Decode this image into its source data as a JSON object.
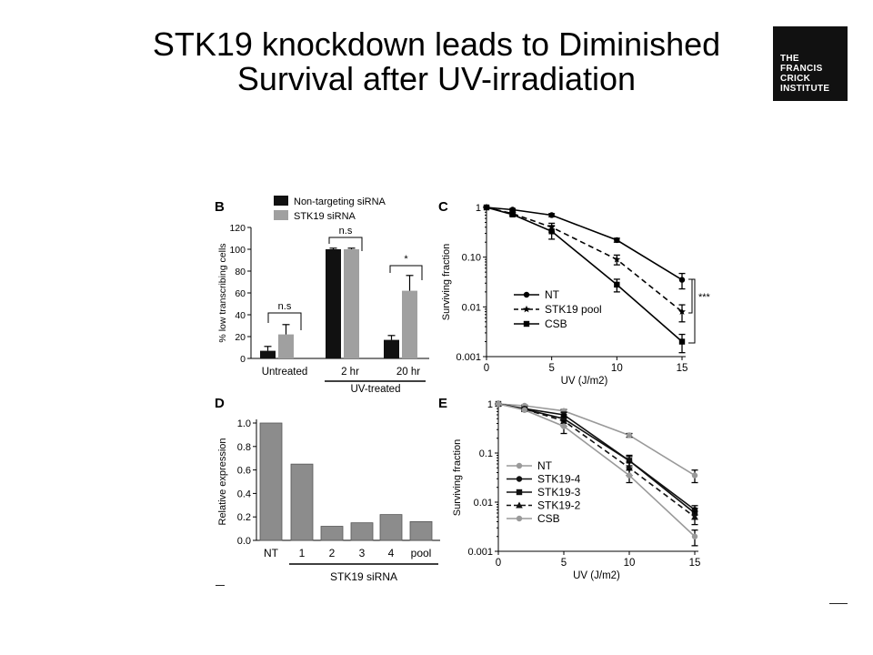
{
  "slide": {
    "title_line1": "STK19 knockdown leads to Diminished",
    "title_line2": "Survival after UV-irradiation",
    "logo_lines": [
      "THE",
      "FRANCIS",
      "CRICK",
      "INSTITUTE"
    ]
  },
  "colors": {
    "black": "#111111",
    "gray": "#a0a0a0",
    "panel_d_bar": "#8c8c8c",
    "gray_series": "#9a9a9a"
  },
  "chart_data": [
    {
      "panel": "B",
      "type": "bar",
      "ylabel": "% low transcribing cells",
      "ylim": [
        0,
        120
      ],
      "yticks": [
        "0",
        "20",
        "40",
        "60",
        "80",
        "100",
        "120"
      ],
      "categories": [
        "Untreated",
        "2 hr",
        "20 hr"
      ],
      "group_label": "UV-treated",
      "series": [
        {
          "name": "Non-targeting siRNA",
          "color": "#111111",
          "values": [
            7,
            100,
            17
          ],
          "errors": [
            4,
            1,
            4
          ]
        },
        {
          "name": "STK19 siRNA",
          "color": "#a0a0a0",
          "values": [
            22,
            100,
            62
          ],
          "errors": [
            9,
            1,
            14
          ]
        }
      ],
      "annotations": [
        "n.s",
        "n.s",
        "*"
      ]
    },
    {
      "panel": "C",
      "type": "line",
      "xlabel": "UV (J/m2)",
      "ylabel": "Surviving fraction",
      "yscale": "log",
      "xlim": [
        0,
        15
      ],
      "ylim": [
        0.001,
        1
      ],
      "xticks": [
        "0",
        "5",
        "10",
        "15"
      ],
      "yticks": [
        "0.001",
        "0.01",
        "0.10",
        "1"
      ],
      "x": [
        0,
        2,
        5,
        10,
        15
      ],
      "series": [
        {
          "name": "NT",
          "style": "solid",
          "marker": "circle",
          "values": [
            1,
            0.9,
            0.7,
            0.22,
            0.035
          ],
          "errors": [
            0,
            0.05,
            0.05,
            0.02,
            0.012
          ]
        },
        {
          "name": "STK19 pool",
          "style": "dashed",
          "marker": "star",
          "values": [
            1,
            0.75,
            0.4,
            0.09,
            0.008
          ],
          "errors": [
            0,
            0.05,
            0.08,
            0.02,
            0.003
          ]
        },
        {
          "name": "CSB",
          "style": "solid",
          "marker": "square",
          "values": [
            1,
            0.72,
            0.33,
            0.028,
            0.002
          ],
          "errors": [
            0,
            0.05,
            0.1,
            0.008,
            0.0008
          ]
        }
      ],
      "annotations": [
        "***"
      ]
    },
    {
      "panel": "D",
      "type": "bar",
      "ylabel": "Relative expression",
      "ylim": [
        0,
        1.0
      ],
      "yticks": [
        "0.0",
        "0.2",
        "0.4",
        "0.6",
        "0.8",
        "1.0"
      ],
      "categories": [
        "NT",
        "1",
        "2",
        "3",
        "4",
        "pool"
      ],
      "values": [
        1.0,
        0.65,
        0.12,
        0.15,
        0.22,
        0.16
      ],
      "group_label": "STK19 siRNA"
    },
    {
      "panel": "E",
      "type": "line",
      "xlabel": "UV (J/m2)",
      "ylabel": "Surviving fraction",
      "yscale": "log",
      "xlim": [
        0,
        15
      ],
      "ylim": [
        0.001,
        1
      ],
      "xticks": [
        "0",
        "5",
        "10",
        "15"
      ],
      "yticks": [
        "0.001",
        "0.01",
        "0.1",
        "1"
      ],
      "x": [
        0,
        2,
        5,
        10,
        15
      ],
      "series": [
        {
          "name": "NT",
          "color": "#9a9a9a",
          "style": "solid",
          "marker": "circle",
          "values": [
            1,
            0.92,
            0.72,
            0.23,
            0.035
          ],
          "errors": [
            0,
            0.03,
            0.05,
            0.02,
            0.01
          ]
        },
        {
          "name": "STK19-4",
          "color": "#111111",
          "style": "solid",
          "marker": "circle",
          "values": [
            1,
            0.8,
            0.6,
            0.07,
            0.007
          ],
          "errors": [
            0,
            0.03,
            0.08,
            0.015,
            0.0015
          ]
        },
        {
          "name": "STK19-3",
          "color": "#111111",
          "style": "solid",
          "marker": "square",
          "values": [
            1,
            0.78,
            0.5,
            0.07,
            0.006
          ],
          "errors": [
            0,
            0.03,
            0.1,
            0.02,
            0.0015
          ]
        },
        {
          "name": "STK19-2",
          "color": "#111111",
          "style": "dashed",
          "marker": "triangle",
          "values": [
            1,
            0.78,
            0.45,
            0.05,
            0.005
          ],
          "errors": [
            0,
            0.03,
            0.1,
            0.015,
            0.0015
          ]
        },
        {
          "name": "CSB",
          "color": "#9a9a9a",
          "style": "solid",
          "marker": "circle",
          "values": [
            1,
            0.75,
            0.35,
            0.035,
            0.002
          ],
          "errors": [
            0,
            0.03,
            0.1,
            0.01,
            0.0007
          ]
        }
      ]
    }
  ]
}
